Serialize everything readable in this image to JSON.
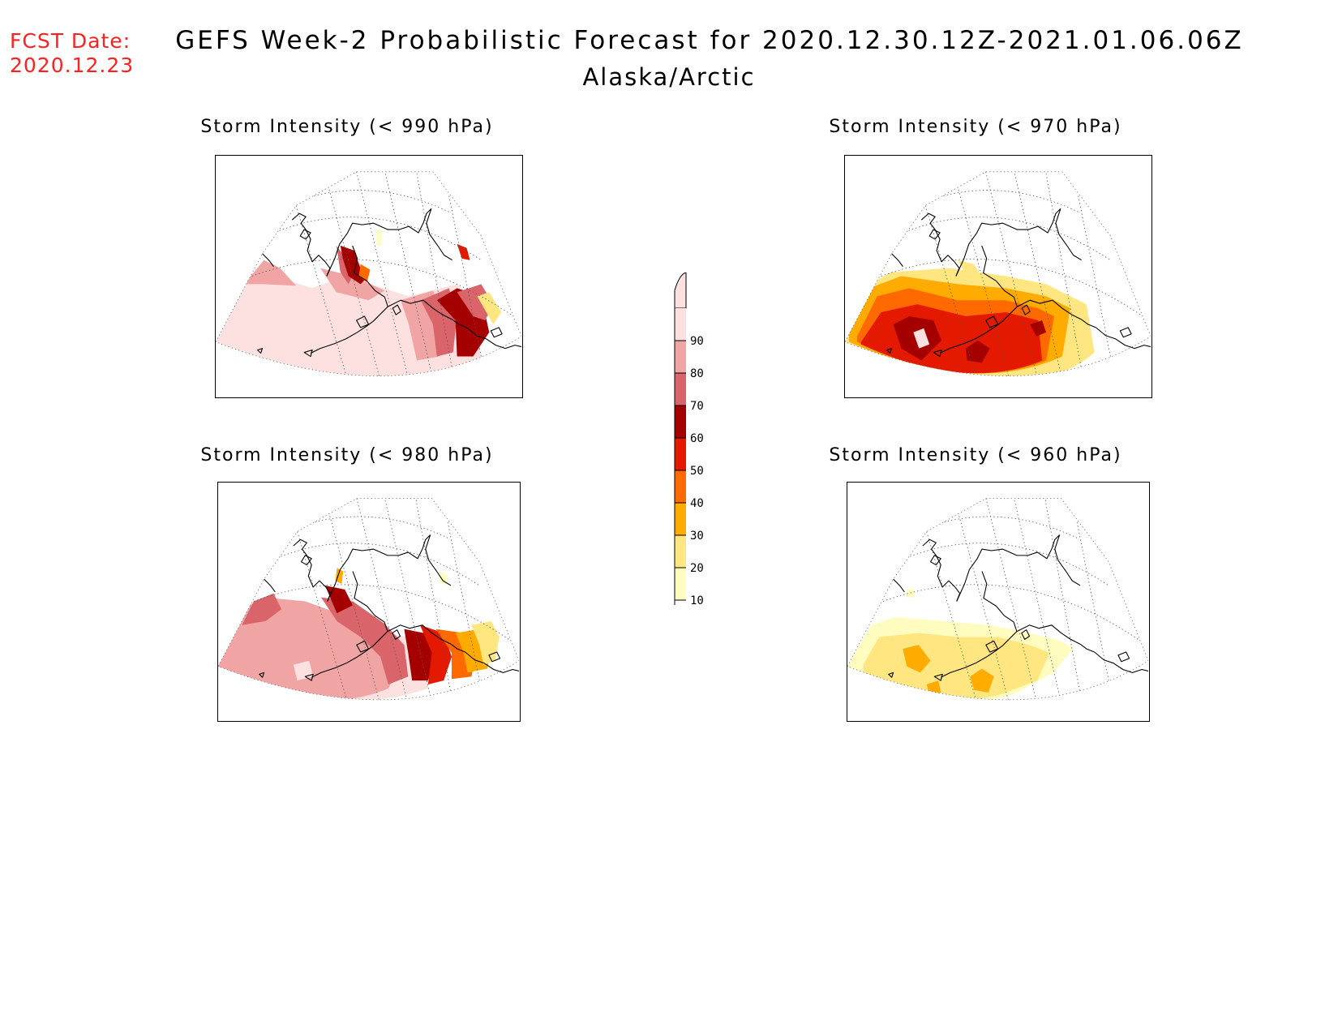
{
  "header": {
    "fcst_label": "FCST Date:",
    "fcst_date": "2020.12.23",
    "title": "GEFS Week-2 Probabilistic Forecast for 2020.12.30.12Z-2021.01.06.06Z",
    "region": "Alaska/Arctic"
  },
  "panels": [
    {
      "id": "p990",
      "title": "Storm Intensity (< 990 hPa)",
      "threshold_hpa": 990
    },
    {
      "id": "p970",
      "title": "Storm Intensity (< 970 hPa)",
      "threshold_hpa": 970
    },
    {
      "id": "p980",
      "title": "Storm Intensity (< 980 hPa)",
      "threshold_hpa": 980
    },
    {
      "id": "p960",
      "title": "Storm Intensity (< 960 hPa)",
      "threshold_hpa": 960
    }
  ],
  "colorbar": {
    "ticks": [
      "10",
      "20",
      "30",
      "40",
      "50",
      "60",
      "70",
      "80",
      "90"
    ],
    "bins": [
      {
        "from": 10,
        "to": 20,
        "color": "#fffcc0"
      },
      {
        "from": 20,
        "to": 30,
        "color": "#ffe680"
      },
      {
        "from": 30,
        "to": 40,
        "color": "#ffab00"
      },
      {
        "from": 40,
        "to": 50,
        "color": "#ff6a00"
      },
      {
        "from": 50,
        "to": 60,
        "color": "#e31a00"
      },
      {
        "from": 60,
        "to": 70,
        "color": "#a50000"
      },
      {
        "from": 70,
        "to": 80,
        "color": "#d9646a"
      },
      {
        "from": 80,
        "to": 90,
        "color": "#f0a4a4"
      },
      {
        "from": 90,
        "to": 100,
        "color": "#fde0e0"
      }
    ]
  },
  "colors": {
    "fcst_date": "#ff2020"
  }
}
